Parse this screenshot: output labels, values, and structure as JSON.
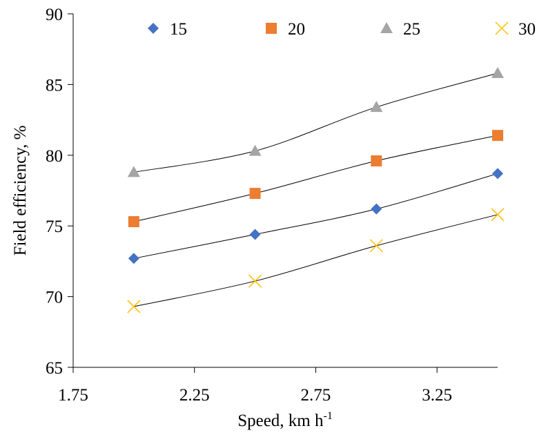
{
  "chart_data": {
    "type": "scatter",
    "title": "",
    "xlabel": "Speed, km h",
    "xlabel_superscript": "-1",
    "ylabel": "Field efficiency, %",
    "xlim": [
      1.75,
      3.5
    ],
    "ylim": [
      65,
      90
    ],
    "xticks": [
      1.75,
      2.25,
      2.75,
      3.25
    ],
    "xtick_labels": [
      "1.75",
      "2.25",
      "2.75",
      "3.25"
    ],
    "yticks": [
      65,
      70,
      75,
      80,
      85,
      90
    ],
    "ytick_labels": [
      "65",
      "70",
      "75",
      "80",
      "85",
      "90"
    ],
    "grid": false,
    "legend_position": "top",
    "trendline": "smooth curve through points",
    "x": [
      2.0,
      2.5,
      3.0,
      3.5
    ],
    "series": [
      {
        "name": "15",
        "marker": "diamond",
        "color": "#4472C4",
        "values": [
          72.7,
          74.4,
          76.2,
          78.7
        ]
      },
      {
        "name": "20",
        "marker": "square",
        "color": "#ED7D31",
        "values": [
          75.3,
          77.3,
          79.6,
          81.4
        ]
      },
      {
        "name": "25",
        "marker": "triangle",
        "color": "#A5A5A5",
        "values": [
          78.8,
          80.3,
          83.4,
          85.8
        ]
      },
      {
        "name": "30",
        "marker": "x",
        "color": "#FFC000",
        "values": [
          69.3,
          71.1,
          73.6,
          75.8
        ]
      }
    ]
  }
}
